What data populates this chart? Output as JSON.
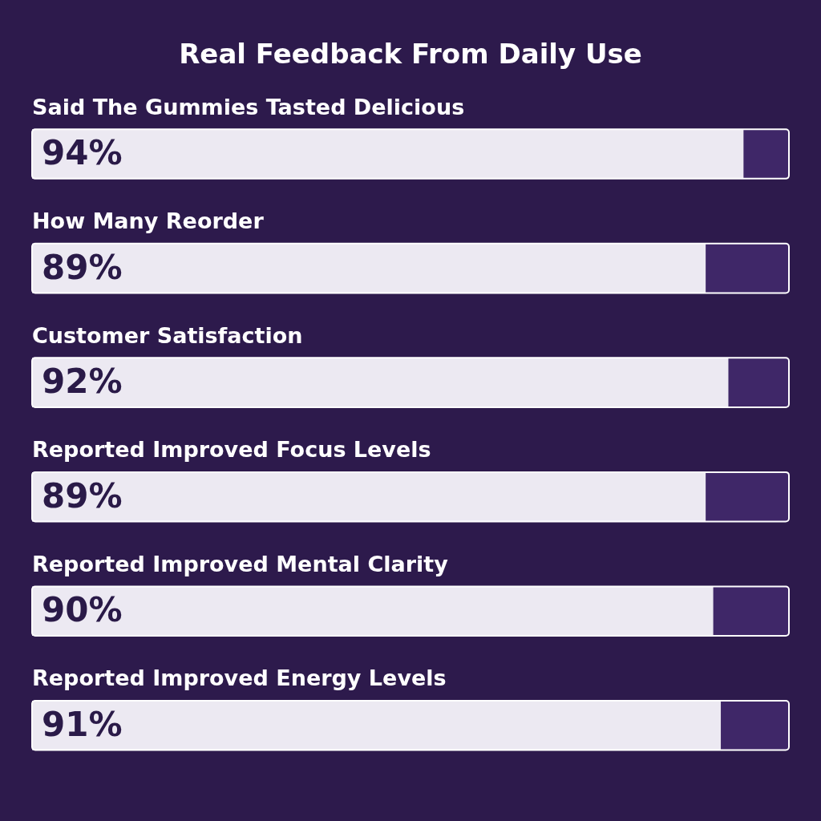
{
  "chart_data": {
    "type": "bar",
    "orientation": "horizontal",
    "title": "Real Feedback From Daily Use",
    "categories": [
      "Said The Gummies Tasted Delicious",
      "How Many Reorder",
      "Customer Satisfaction",
      "Reported Improved Focus Levels",
      "Reported Improved Mental Clarity",
      "Reported Improved Energy Levels"
    ],
    "values": [
      94,
      89,
      92,
      89,
      90,
      91
    ],
    "color": "#ece9f2",
    "value_labels": [
      "94%",
      "89%",
      "92%",
      "89%",
      "90%",
      "91%"
    ],
    "xlim": [
      0,
      100
    ]
  }
}
